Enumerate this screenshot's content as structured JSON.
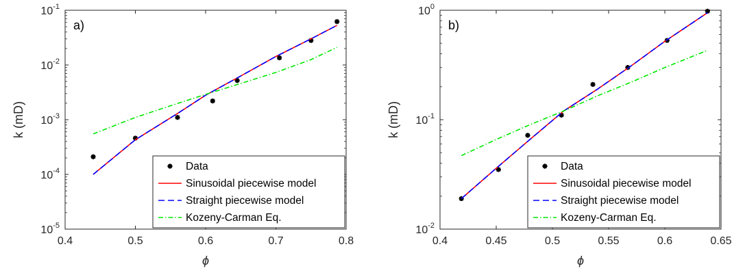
{
  "chart_data": [
    {
      "type": "line",
      "panel_label": "a)",
      "xlabel": "ϕ",
      "ylabel": "k (mD)",
      "xlim": [
        0.4,
        0.8
      ],
      "ylim": [
        1e-05,
        0.1
      ],
      "yscale": "log",
      "xticks": [
        "0.4",
        "0.5",
        "0.6",
        "0.7",
        "0.8"
      ],
      "ytick_exponents": [
        "-5",
        "-4",
        "-3",
        "-2",
        "-1"
      ],
      "grid": false,
      "legend_position": "bottom-right",
      "series": [
        {
          "name": "Data",
          "kind": "marker",
          "color": "#000000",
          "x": [
            0.44,
            0.5,
            0.56,
            0.61,
            0.645,
            0.705,
            0.75,
            0.787
          ],
          "y": [
            0.00021,
            0.00046,
            0.0011,
            0.0022,
            0.0052,
            0.0135,
            0.028,
            0.062
          ]
        },
        {
          "name": "Sinusoidal piecewise model",
          "kind": "solid",
          "color": "#ff0000",
          "x": [
            0.44,
            0.5,
            0.56,
            0.6,
            0.65,
            0.7,
            0.75,
            0.787
          ],
          "y": [
            0.0001,
            0.00043,
            0.0013,
            0.0028,
            0.0063,
            0.0143,
            0.03,
            0.053
          ]
        },
        {
          "name": "Straight piecewise model",
          "kind": "dashed",
          "color": "#0000ff",
          "x": [
            0.44,
            0.5,
            0.56,
            0.6,
            0.65,
            0.7,
            0.75,
            0.787
          ],
          "y": [
            0.0001,
            0.00043,
            0.0013,
            0.0028,
            0.0063,
            0.0143,
            0.03,
            0.053
          ]
        },
        {
          "name": "Kozeny-Carman Eq.",
          "kind": "dashdot",
          "color": "#00e600",
          "x": [
            0.44,
            0.5,
            0.55,
            0.6,
            0.65,
            0.7,
            0.75,
            0.787
          ],
          "y": [
            0.00055,
            0.0011,
            0.0018,
            0.0029,
            0.0046,
            0.0073,
            0.0125,
            0.021
          ]
        }
      ]
    },
    {
      "type": "line",
      "panel_label": "b)",
      "xlabel": "ϕ",
      "ylabel": "k (mD)",
      "xlim": [
        0.4,
        0.65
      ],
      "ylim": [
        0.01,
        1
      ],
      "yscale": "log",
      "xticks": [
        "0.4",
        "0.45",
        "0.5",
        "0.55",
        "0.6",
        "0.65"
      ],
      "ytick_exponents": [
        "-2",
        "-1",
        "0"
      ],
      "grid": false,
      "legend_position": "bottom-right",
      "series": [
        {
          "name": "Data",
          "kind": "marker",
          "color": "#000000",
          "x": [
            0.419,
            0.452,
            0.478,
            0.508,
            0.536,
            0.567,
            0.602,
            0.638
          ],
          "y": [
            0.019,
            0.035,
            0.072,
            0.11,
            0.21,
            0.3,
            0.53,
            0.98
          ]
        },
        {
          "name": "Sinusoidal piecewise model",
          "kind": "solid",
          "color": "#ff0000",
          "x": [
            0.419,
            0.45,
            0.48,
            0.51,
            0.54,
            0.57,
            0.6,
            0.638
          ],
          "y": [
            0.019,
            0.036,
            0.066,
            0.12,
            0.19,
            0.31,
            0.52,
            0.95
          ]
        },
        {
          "name": "Straight piecewise model",
          "kind": "dashed",
          "color": "#0000ff",
          "x": [
            0.419,
            0.45,
            0.48,
            0.51,
            0.54,
            0.57,
            0.6,
            0.638
          ],
          "y": [
            0.019,
            0.036,
            0.066,
            0.12,
            0.19,
            0.31,
            0.52,
            0.95
          ]
        },
        {
          "name": "Kozeny-Carman Eq.",
          "kind": "dashdot",
          "color": "#00e600",
          "x": [
            0.419,
            0.45,
            0.48,
            0.51,
            0.54,
            0.57,
            0.6,
            0.638
          ],
          "y": [
            0.047,
            0.066,
            0.09,
            0.12,
            0.165,
            0.22,
            0.3,
            0.43
          ]
        }
      ]
    }
  ]
}
